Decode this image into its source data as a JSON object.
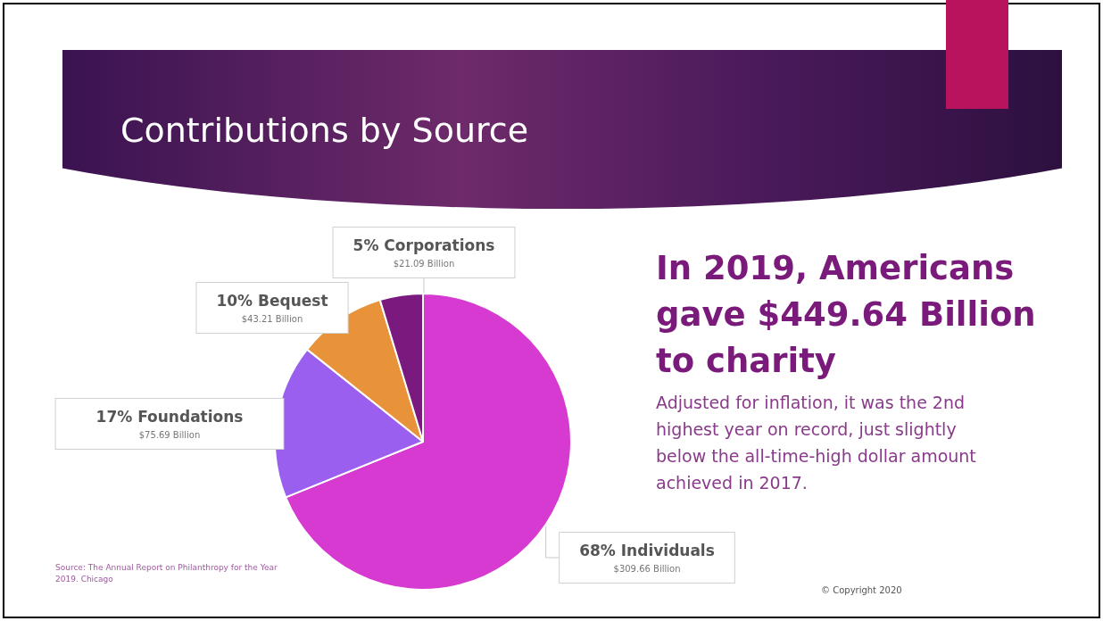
{
  "chart_data": {
    "type": "pie",
    "title": "Contributions by Source",
    "categories": [
      "68% Individuals",
      "17% Foundations",
      "10% Bequest",
      "5% Corporations"
    ],
    "values": [
      309.66,
      75.69,
      43.21,
      21.09
    ],
    "value_labels": [
      "$309.66 Billion",
      "$75.69 Billion",
      "$43.21 Billion",
      "$21.09 Billion"
    ],
    "colors": [
      "#d63ad0",
      "#9b5ff0",
      "#e8923a",
      "#7b1a7e"
    ],
    "legend": false,
    "annotations": [
      "In 2019, Americans gave $449.64 Billion to charity",
      "Adjusted for inflation, it was the 2nd highest year on record, just slightly below the all-time-high dollar amount achieved in 2017.",
      "Source: The Annual Report on Philanthropy for the Year 2019. Chicago",
      "© Copyright 2020"
    ]
  }
}
